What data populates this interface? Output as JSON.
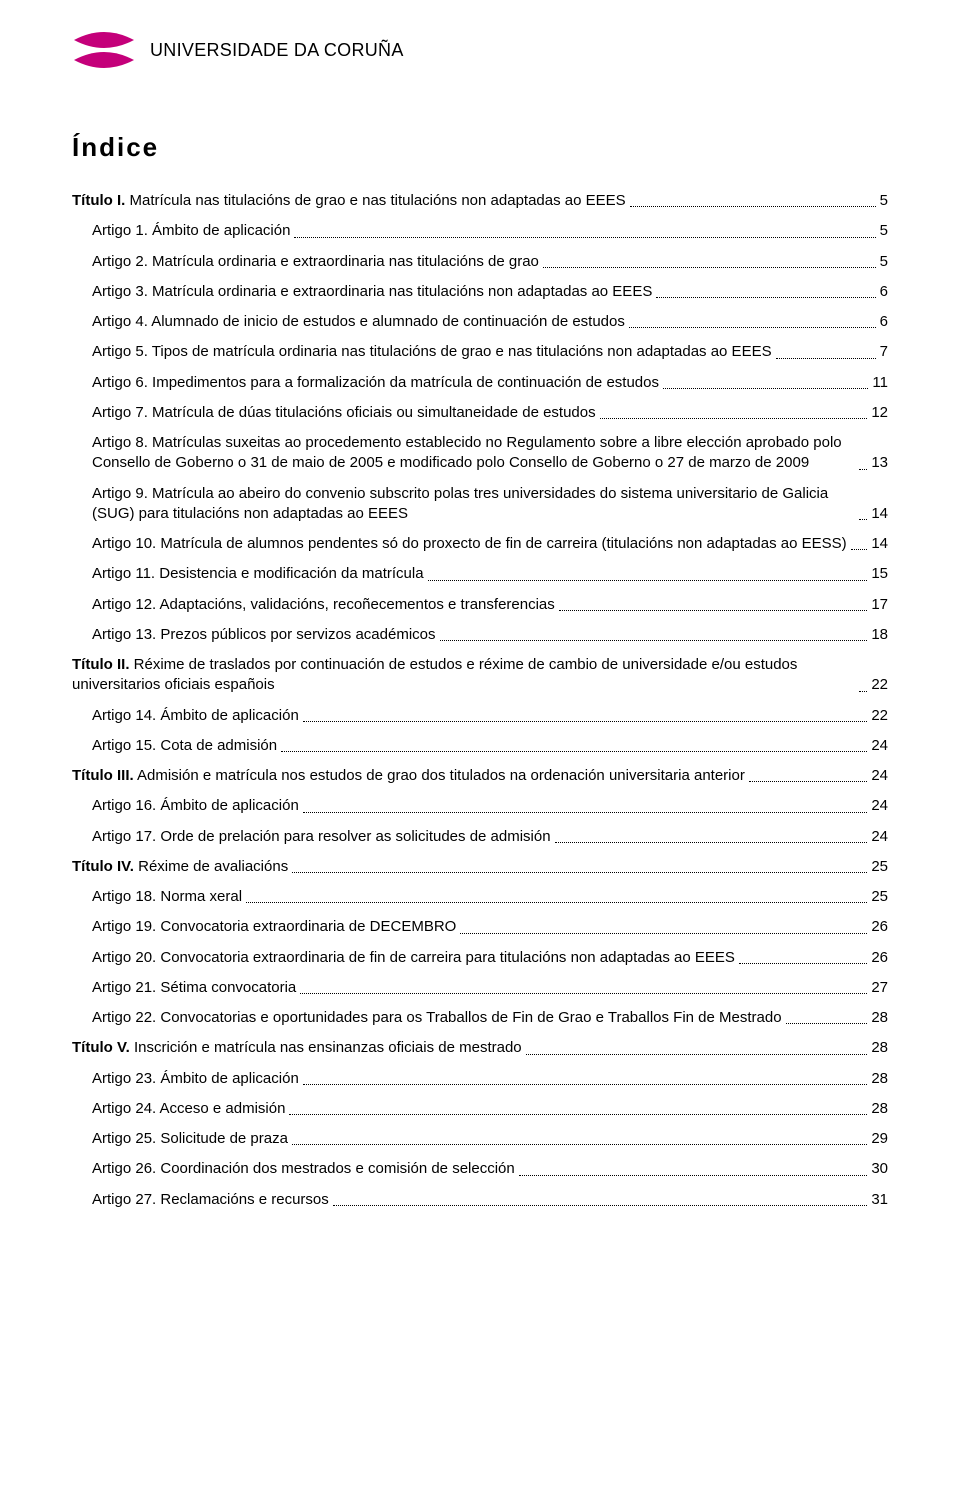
{
  "logo": {
    "color": "#c4007a",
    "text": "UNIVERSIDADE DA CORUÑA"
  },
  "indexTitle": "Índice",
  "toc": [
    {
      "level": 0,
      "boldPrefix": "Título I.",
      "text": " Matrícula nas titulacións de grao e nas titulacións non adaptadas ao EEES",
      "page": "5"
    },
    {
      "level": 1,
      "boldPrefix": "",
      "text": "Artigo 1. Ámbito de aplicación",
      "page": "5"
    },
    {
      "level": 1,
      "boldPrefix": "",
      "text": "Artigo 2. Matrícula ordinaria e extraordinaria nas titulacións de grao",
      "page": "5"
    },
    {
      "level": 1,
      "boldPrefix": "",
      "text": "Artigo 3. Matrícula ordinaria e extraordinaria nas titulacións non adaptadas ao EEES",
      "page": "6"
    },
    {
      "level": 1,
      "boldPrefix": "",
      "text": "Artigo 4. Alumnado de inicio de estudos e alumnado de continuación de estudos",
      "page": "6"
    },
    {
      "level": 1,
      "boldPrefix": "",
      "text": "Artigo 5. Tipos de matrícula ordinaria nas titulacións de grao e nas titulacións non adaptadas ao EEES",
      "page": "7"
    },
    {
      "level": 1,
      "boldPrefix": "",
      "text": "Artigo 6. Impedimentos para a formalización da matrícula de continuación de estudos",
      "page": "11"
    },
    {
      "level": 1,
      "boldPrefix": "",
      "text": "Artigo 7. Matrícula de dúas titulacións oficiais ou simultaneidade de estudos",
      "page": "12"
    },
    {
      "level": 1,
      "boldPrefix": "",
      "text": "Artigo 8. Matrículas suxeitas ao procedemento establecido no Regulamento sobre a libre elección aprobado polo Consello de Goberno o 31 de maio de 2005 e modificado polo Consello de Goberno o 27 de marzo de 2009",
      "page": "13"
    },
    {
      "level": 1,
      "boldPrefix": "",
      "text": "Artigo 9. Matrícula ao abeiro do convenio subscrito polas tres universidades do sistema universitario de Galicia (SUG) para titulacións non adaptadas ao EEES",
      "page": "14"
    },
    {
      "level": 1,
      "boldPrefix": "",
      "text": "Artigo 10. Matrícula de alumnos pendentes só do proxecto de fin de carreira (titulacións non adaptadas ao EESS)",
      "page": "14"
    },
    {
      "level": 1,
      "boldPrefix": "",
      "text": "Artigo 11. Desistencia e modificación da matrícula",
      "page": "15"
    },
    {
      "level": 1,
      "boldPrefix": "",
      "text": "Artigo 12. Adaptacións, validacións, recoñecementos e transferencias",
      "page": "17"
    },
    {
      "level": 1,
      "boldPrefix": "",
      "text": "Artigo 13. Prezos públicos por servizos académicos",
      "page": "18"
    },
    {
      "level": 0,
      "boldPrefix": "Título II.",
      "text": " Réxime de traslados por continuación de estudos e réxime de cambio de universidade e/ou estudos universitarios oficiais españois",
      "page": "22"
    },
    {
      "level": 1,
      "boldPrefix": "",
      "text": "Artigo 14. Ámbito de aplicación",
      "page": "22"
    },
    {
      "level": 1,
      "boldPrefix": "",
      "text": "Artigo 15. Cota de admisión",
      "page": "24"
    },
    {
      "level": 0,
      "boldPrefix": "Título III.",
      "text": " Admisión e matrícula nos estudos de grao dos titulados na ordenación universitaria anterior",
      "page": "24",
      "tight": true
    },
    {
      "level": 1,
      "boldPrefix": "",
      "text": "Artigo 16. Ámbito de aplicación",
      "page": "24"
    },
    {
      "level": 1,
      "boldPrefix": "",
      "text": "Artigo 17. Orde de prelación para resolver as solicitudes de admisión",
      "page": "24"
    },
    {
      "level": 0,
      "boldPrefix": "Título IV.",
      "text": " Réxime de avaliacións",
      "page": "25"
    },
    {
      "level": 1,
      "boldPrefix": "",
      "text": "Artigo 18. Norma xeral",
      "page": "25"
    },
    {
      "level": 1,
      "boldPrefix": "",
      "text": "Artigo 19. Convocatoria extraordinaria de DECEMBRO",
      "page": "26"
    },
    {
      "level": 1,
      "boldPrefix": "",
      "text": "Artigo 20. Convocatoria extraordinaria de fin de carreira para titulacións non adaptadas ao EEES",
      "page": "26"
    },
    {
      "level": 1,
      "boldPrefix": "",
      "text": "Artigo 21. Sétima convocatoria",
      "page": "27"
    },
    {
      "level": 1,
      "boldPrefix": "",
      "text": "Artigo 22. Convocatorias e oportunidades para os Traballos de Fin de Grao e Traballos Fin de Mestrado",
      "page": "28"
    },
    {
      "level": 0,
      "boldPrefix": "Título V.",
      "text": " Inscrición e matrícula nas ensinanzas oficiais de mestrado",
      "page": "28"
    },
    {
      "level": 1,
      "boldPrefix": "",
      "text": "Artigo 23. Ámbito de aplicación",
      "page": "28"
    },
    {
      "level": 1,
      "boldPrefix": "",
      "text": "Artigo 24. Acceso e admisión",
      "page": "28"
    },
    {
      "level": 1,
      "boldPrefix": "",
      "text": "Artigo 25. Solicitude de praza",
      "page": "29"
    },
    {
      "level": 1,
      "boldPrefix": "",
      "text": "Artigo 26. Coordinación dos mestrados e comisión de selección",
      "page": "30"
    },
    {
      "level": 1,
      "boldPrefix": "",
      "text": "Artigo 27. Reclamacións e recursos",
      "page": "31"
    }
  ],
  "style": {
    "bodyFontSize": 15,
    "titleFontSize": 26,
    "logoFontSize": 18,
    "textColor": "#000000",
    "backgroundColor": "#ffffff"
  }
}
